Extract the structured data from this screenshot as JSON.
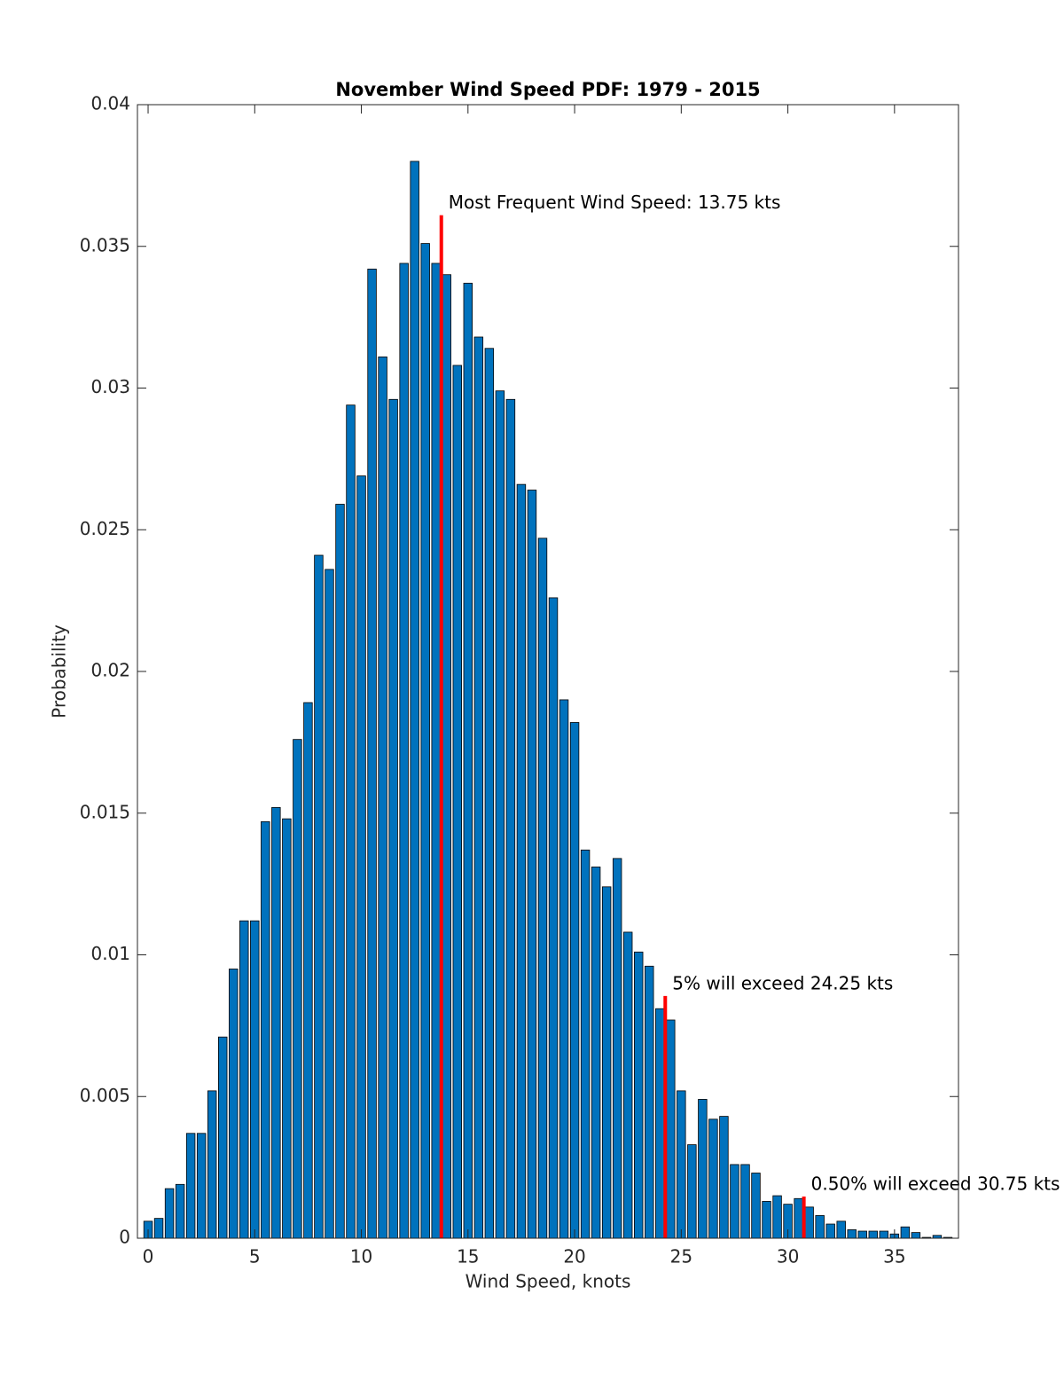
{
  "chart_data": {
    "type": "bar",
    "title": "November Wind Speed PDF: 1979 - 2015",
    "x_label": "Wind Speed, knots",
    "y_label": "Probability",
    "x": [
      0,
      0.5,
      1,
      1.5,
      2,
      2.5,
      3,
      3.5,
      4,
      4.5,
      5,
      5.5,
      6,
      6.5,
      7,
      7.5,
      8,
      8.5,
      9,
      9.5,
      10,
      10.5,
      11,
      11.5,
      12,
      12.5,
      13,
      13.5,
      14,
      14.5,
      15,
      15.5,
      16,
      16.5,
      17,
      17.5,
      18,
      18.5,
      19,
      19.5,
      20,
      20.5,
      21,
      21.5,
      22,
      22.5,
      23,
      23.5,
      24,
      24.5,
      25,
      25.5,
      26,
      26.5,
      27,
      27.5,
      28,
      28.5,
      29,
      29.5,
      30,
      30.5,
      31,
      31.5,
      32,
      32.5,
      33,
      33.5,
      34,
      34.5,
      35,
      35.5,
      36,
      36.5,
      37,
      37.5
    ],
    "values": [
      0.0006,
      0.0007,
      0.00175,
      0.0019,
      0.0037,
      0.0037,
      0.0052,
      0.0071,
      0.0095,
      0.0112,
      0.0112,
      0.0147,
      0.0152,
      0.0148,
      0.0176,
      0.0189,
      0.0241,
      0.0236,
      0.0259,
      0.0294,
      0.0269,
      0.0342,
      0.0311,
      0.0296,
      0.0344,
      0.038,
      0.0351,
      0.0344,
      0.034,
      0.0308,
      0.0337,
      0.0318,
      0.0314,
      0.0299,
      0.0296,
      0.0266,
      0.0264,
      0.0247,
      0.0226,
      0.019,
      0.0182,
      0.0137,
      0.0131,
      0.0124,
      0.0134,
      0.0108,
      0.0101,
      0.0096,
      0.0081,
      0.0077,
      0.0052,
      0.0033,
      0.0049,
      0.0042,
      0.0043,
      0.0026,
      0.0026,
      0.0023,
      0.0013,
      0.0015,
      0.0012,
      0.0014,
      0.0011,
      0.0008,
      0.0005,
      0.0006,
      0.0003,
      0.00025,
      0.00025,
      0.00025,
      0.00015,
      0.0004,
      0.0002,
      3e-05,
      0.0001,
      3e-05
    ],
    "color": "#0072bd",
    "bar_width": 0.4,
    "markers": [
      {
        "x": 13.75,
        "top": 0.0361,
        "label": "Most Frequent Wind Speed: 13.75 kts"
      },
      {
        "x": 24.25,
        "top": 0.00855,
        "label": "5% will exceed 24.25 kts"
      },
      {
        "x": 30.75,
        "top": 0.00147,
        "label": "0.50% will exceed 30.75 kts"
      }
    ],
    "marker_color": "#ff0000",
    "xlim": [
      -0.5,
      38
    ],
    "ylim": [
      0,
      0.04
    ],
    "xticks": [
      0,
      5,
      10,
      15,
      20,
      25,
      30,
      35
    ],
    "yticks": [
      0,
      0.005,
      0.01,
      0.015,
      0.02,
      0.025,
      0.03,
      0.035,
      0.04
    ],
    "grid": false
  }
}
